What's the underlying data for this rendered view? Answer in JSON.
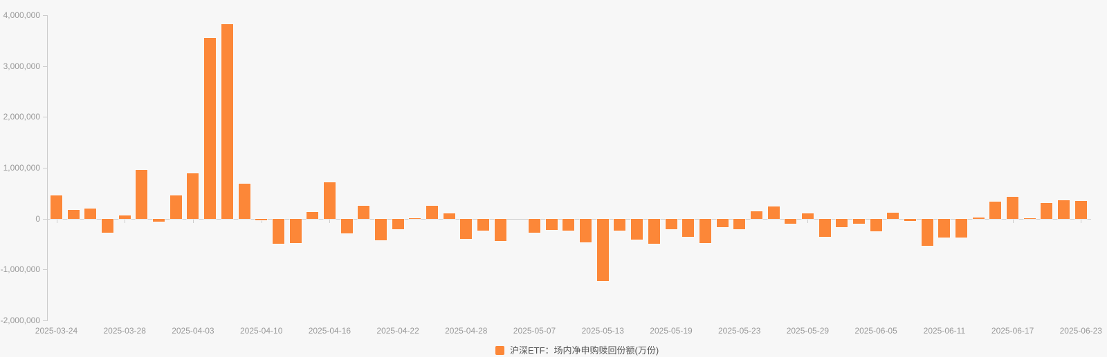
{
  "colors": {
    "bar": "#fc8738",
    "background": "#f7f7f7",
    "axis_line": "#cccccc",
    "tick_label": "#999999",
    "legend_text": "#555555"
  },
  "legend": {
    "label": "沪深ETF：场内净申购赎回份额(万份)"
  },
  "chart_data": {
    "type": "bar",
    "title": "",
    "xlabel": "",
    "ylabel": "",
    "legend_position": "bottom-center",
    "grid": false,
    "ylim": [
      -2000000,
      4000000
    ],
    "y_ticks": [
      4000000,
      3000000,
      2000000,
      1000000,
      0,
      -1000000,
      -2000000
    ],
    "y_tick_labels": [
      "4,000,000",
      "3,000,000",
      "2,000,000",
      "1,000,000",
      "0",
      "-1,000,000",
      "-2,000,000"
    ],
    "x_axis_labeled_every": 4,
    "x_tick_labels": [
      "2025-03-24",
      "2025-03-28",
      "2025-04-03",
      "2025-04-10",
      "2025-04-16",
      "2025-04-22",
      "2025-04-28",
      "2025-05-07",
      "2025-05-13",
      "2025-05-19",
      "2025-05-23",
      "2025-05-29",
      "2025-06-05",
      "2025-06-11",
      "2025-06-17",
      "2025-06-23"
    ],
    "categories": [
      "2025-03-24",
      "2025-03-25",
      "2025-03-26",
      "2025-03-27",
      "2025-03-28",
      "2025-03-31",
      "2025-04-01",
      "2025-04-02",
      "2025-04-03",
      "2025-04-07",
      "2025-04-08",
      "2025-04-09",
      "2025-04-10",
      "2025-04-11",
      "2025-04-14",
      "2025-04-15",
      "2025-04-16",
      "2025-04-17",
      "2025-04-18",
      "2025-04-21",
      "2025-04-22",
      "2025-04-23",
      "2025-04-24",
      "2025-04-25",
      "2025-04-28",
      "2025-04-29",
      "2025-04-30",
      "2025-05-06",
      "2025-05-07",
      "2025-05-08",
      "2025-05-09",
      "2025-05-12",
      "2025-05-13",
      "2025-05-14",
      "2025-05-15",
      "2025-05-16",
      "2025-05-19",
      "2025-05-20",
      "2025-05-21",
      "2025-05-22",
      "2025-05-23",
      "2025-05-26",
      "2025-05-27",
      "2025-05-28",
      "2025-05-29",
      "2025-05-30",
      "2025-06-03",
      "2025-06-04",
      "2025-06-05",
      "2025-06-06",
      "2025-06-09",
      "2025-06-10",
      "2025-06-11",
      "2025-06-12",
      "2025-06-13",
      "2025-06-16",
      "2025-06-17",
      "2025-06-18",
      "2025-06-19",
      "2025-06-20",
      "2025-06-23"
    ],
    "series": [
      {
        "name": "沪深ETF：场内净申购赎回份额(万份)",
        "color": "#fc8738",
        "values": [
          460000,
          170000,
          195000,
          -275000,
          70000,
          955000,
          -60000,
          460000,
          890000,
          3555000,
          3825000,
          690000,
          -30000,
          -495000,
          -480000,
          135000,
          710000,
          -290000,
          255000,
          -420000,
          -205000,
          15000,
          250000,
          100000,
          -395000,
          -230000,
          -440000,
          0,
          -270000,
          -220000,
          -240000,
          -460000,
          -1225000,
          -230000,
          -410000,
          -495000,
          -210000,
          -355000,
          -480000,
          -165000,
          -210000,
          140000,
          240000,
          -100000,
          105000,
          -355000,
          -170000,
          -95000,
          -255000,
          125000,
          -50000,
          -530000,
          -365000,
          -375000,
          20000,
          340000,
          425000,
          15000,
          305000,
          365000,
          345000
        ]
      }
    ]
  }
}
